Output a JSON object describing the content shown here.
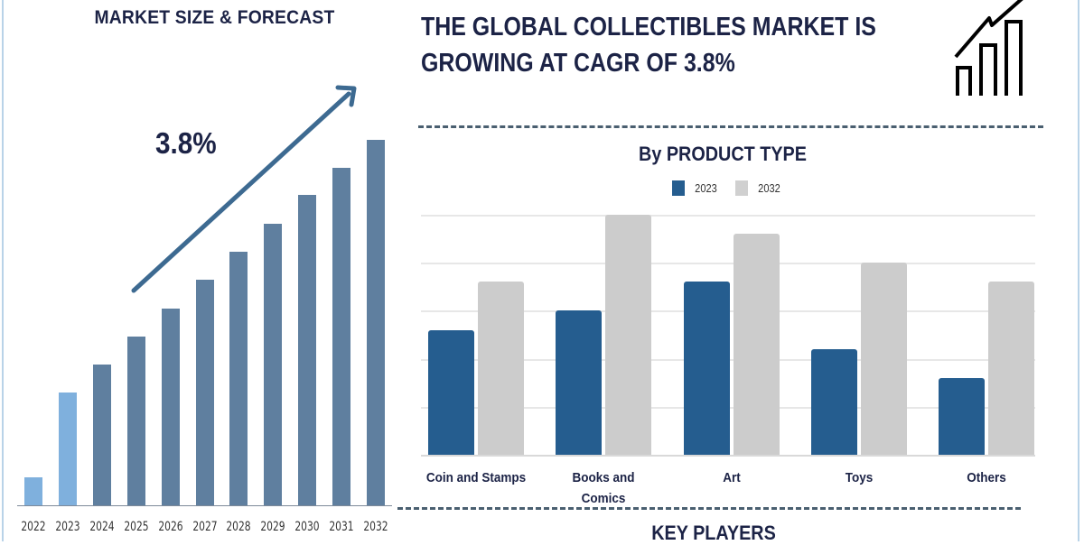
{
  "left_panel": {
    "title": "MARKET SIZE & FORECAST",
    "cagr_label": "3.8%",
    "icon": "growth-arrow-icon"
  },
  "header": {
    "title_line1": "THE GLOBAL COLLECTIBLES MARKET IS",
    "title_line2": "GROWING AT CAGR OF 3.8%",
    "icon": "trend-chart-icon"
  },
  "right_panel": {
    "chart_title": "By PRODUCT TYPE",
    "legend": [
      {
        "label": "2023",
        "color": "#255d8f"
      },
      {
        "label": "2032",
        "color": "#cccccc"
      }
    ],
    "section_title": "KEY PLAYERS"
  },
  "colors": {
    "historic_bar": "#7fb0dd",
    "forecast_bar": "#5f7f9f",
    "arrow": "#3d6a91",
    "title_text": "#1c2346",
    "dash_line": "#4a5f70"
  },
  "chart_data": [
    {
      "type": "bar",
      "title": "MARKET SIZE & FORECAST",
      "annotation": "3.8%",
      "categories": [
        "2022",
        "2023",
        "2024",
        "2025",
        "2026",
        "2027",
        "2028",
        "2029",
        "2030",
        "2031",
        "2032"
      ],
      "values": [
        31,
        125,
        156,
        187,
        218,
        250,
        281,
        312,
        344,
        374,
        405
      ],
      "value_note": "relative bar heights (no y-axis values shown)",
      "bar_colors": [
        "#7fb0dd",
        "#7fb0dd",
        "#5f7f9f",
        "#5f7f9f",
        "#5f7f9f",
        "#5f7f9f",
        "#5f7f9f",
        "#5f7f9f",
        "#5f7f9f",
        "#5f7f9f",
        "#5f7f9f"
      ],
      "xlabel": "",
      "ylabel": "",
      "grid": false,
      "legend": null
    },
    {
      "type": "bar",
      "title": "By PRODUCT TYPE",
      "categories": [
        "Coin and Stamps",
        "Books and Comics",
        "Art",
        "Toys",
        "Others"
      ],
      "series": [
        {
          "name": "2023",
          "color": "#255d8f",
          "values": [
            2.6,
            3.0,
            3.6,
            2.2,
            1.6
          ]
        },
        {
          "name": "2032",
          "color": "#cccccc",
          "values": [
            3.6,
            5.0,
            4.6,
            4.0,
            3.6
          ]
        }
      ],
      "value_note": "relative units, read from unlabeled gridlines",
      "ylim": [
        0,
        5
      ],
      "grid": true,
      "legend_position": "top",
      "xlabel": "",
      "ylabel": ""
    }
  ]
}
